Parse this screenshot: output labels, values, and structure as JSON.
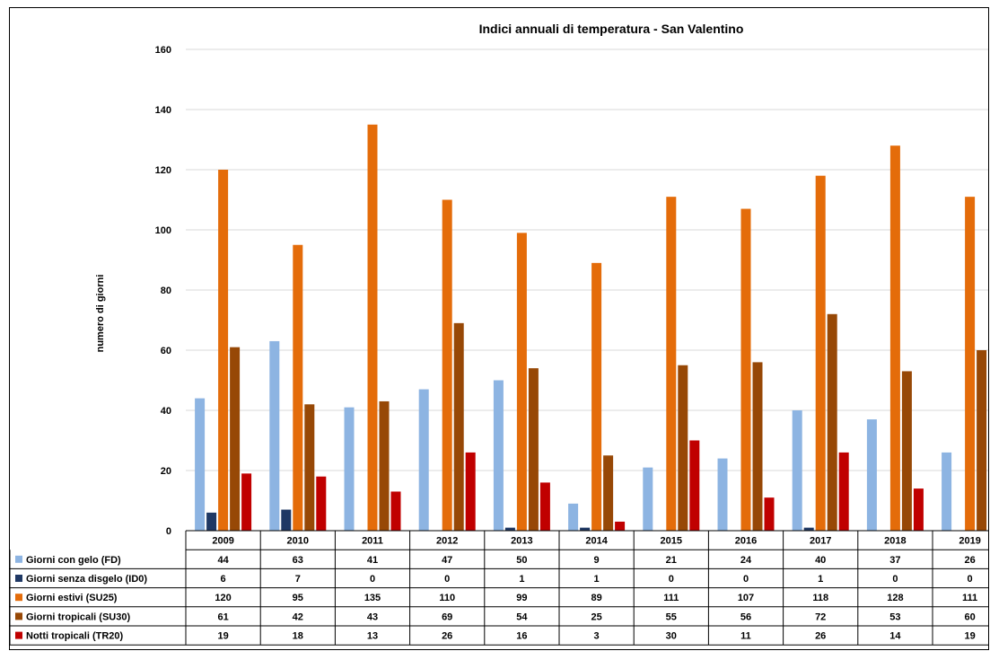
{
  "chart_data": {
    "type": "bar",
    "title": "Indici annuali di temperatura - San Valentino",
    "ylabel": "numero di giorni",
    "xlabel": "",
    "ylim": [
      0,
      160
    ],
    "yticks": [
      0,
      20,
      40,
      60,
      80,
      100,
      120,
      140,
      160
    ],
    "grid": true,
    "legend": "data-table",
    "categories": [
      "2009",
      "2010",
      "2011",
      "2012",
      "2013",
      "2014",
      "2015",
      "2016",
      "2017",
      "2018",
      "2019"
    ],
    "series": [
      {
        "name": "Giorni con gelo (FD)",
        "color": "#8DB4E2",
        "values": [
          44,
          63,
          41,
          47,
          50,
          9,
          21,
          24,
          40,
          37,
          26
        ]
      },
      {
        "name": "Giorni senza disgelo (ID0)",
        "color": "#1F3864",
        "values": [
          6,
          7,
          0,
          0,
          1,
          1,
          0,
          0,
          1,
          0,
          0
        ]
      },
      {
        "name": "Giorni estivi (SU25)",
        "color": "#E46C0A",
        "values": [
          120,
          95,
          135,
          110,
          99,
          89,
          111,
          107,
          118,
          128,
          111
        ]
      },
      {
        "name": "Giorni tropicali (SU30)",
        "color": "#974806",
        "values": [
          61,
          42,
          43,
          69,
          54,
          25,
          55,
          56,
          72,
          53,
          60
        ]
      },
      {
        "name": "Notti tropicali (TR20)",
        "color": "#C00000",
        "values": [
          19,
          18,
          13,
          26,
          16,
          3,
          30,
          11,
          26,
          14,
          19
        ]
      }
    ]
  }
}
